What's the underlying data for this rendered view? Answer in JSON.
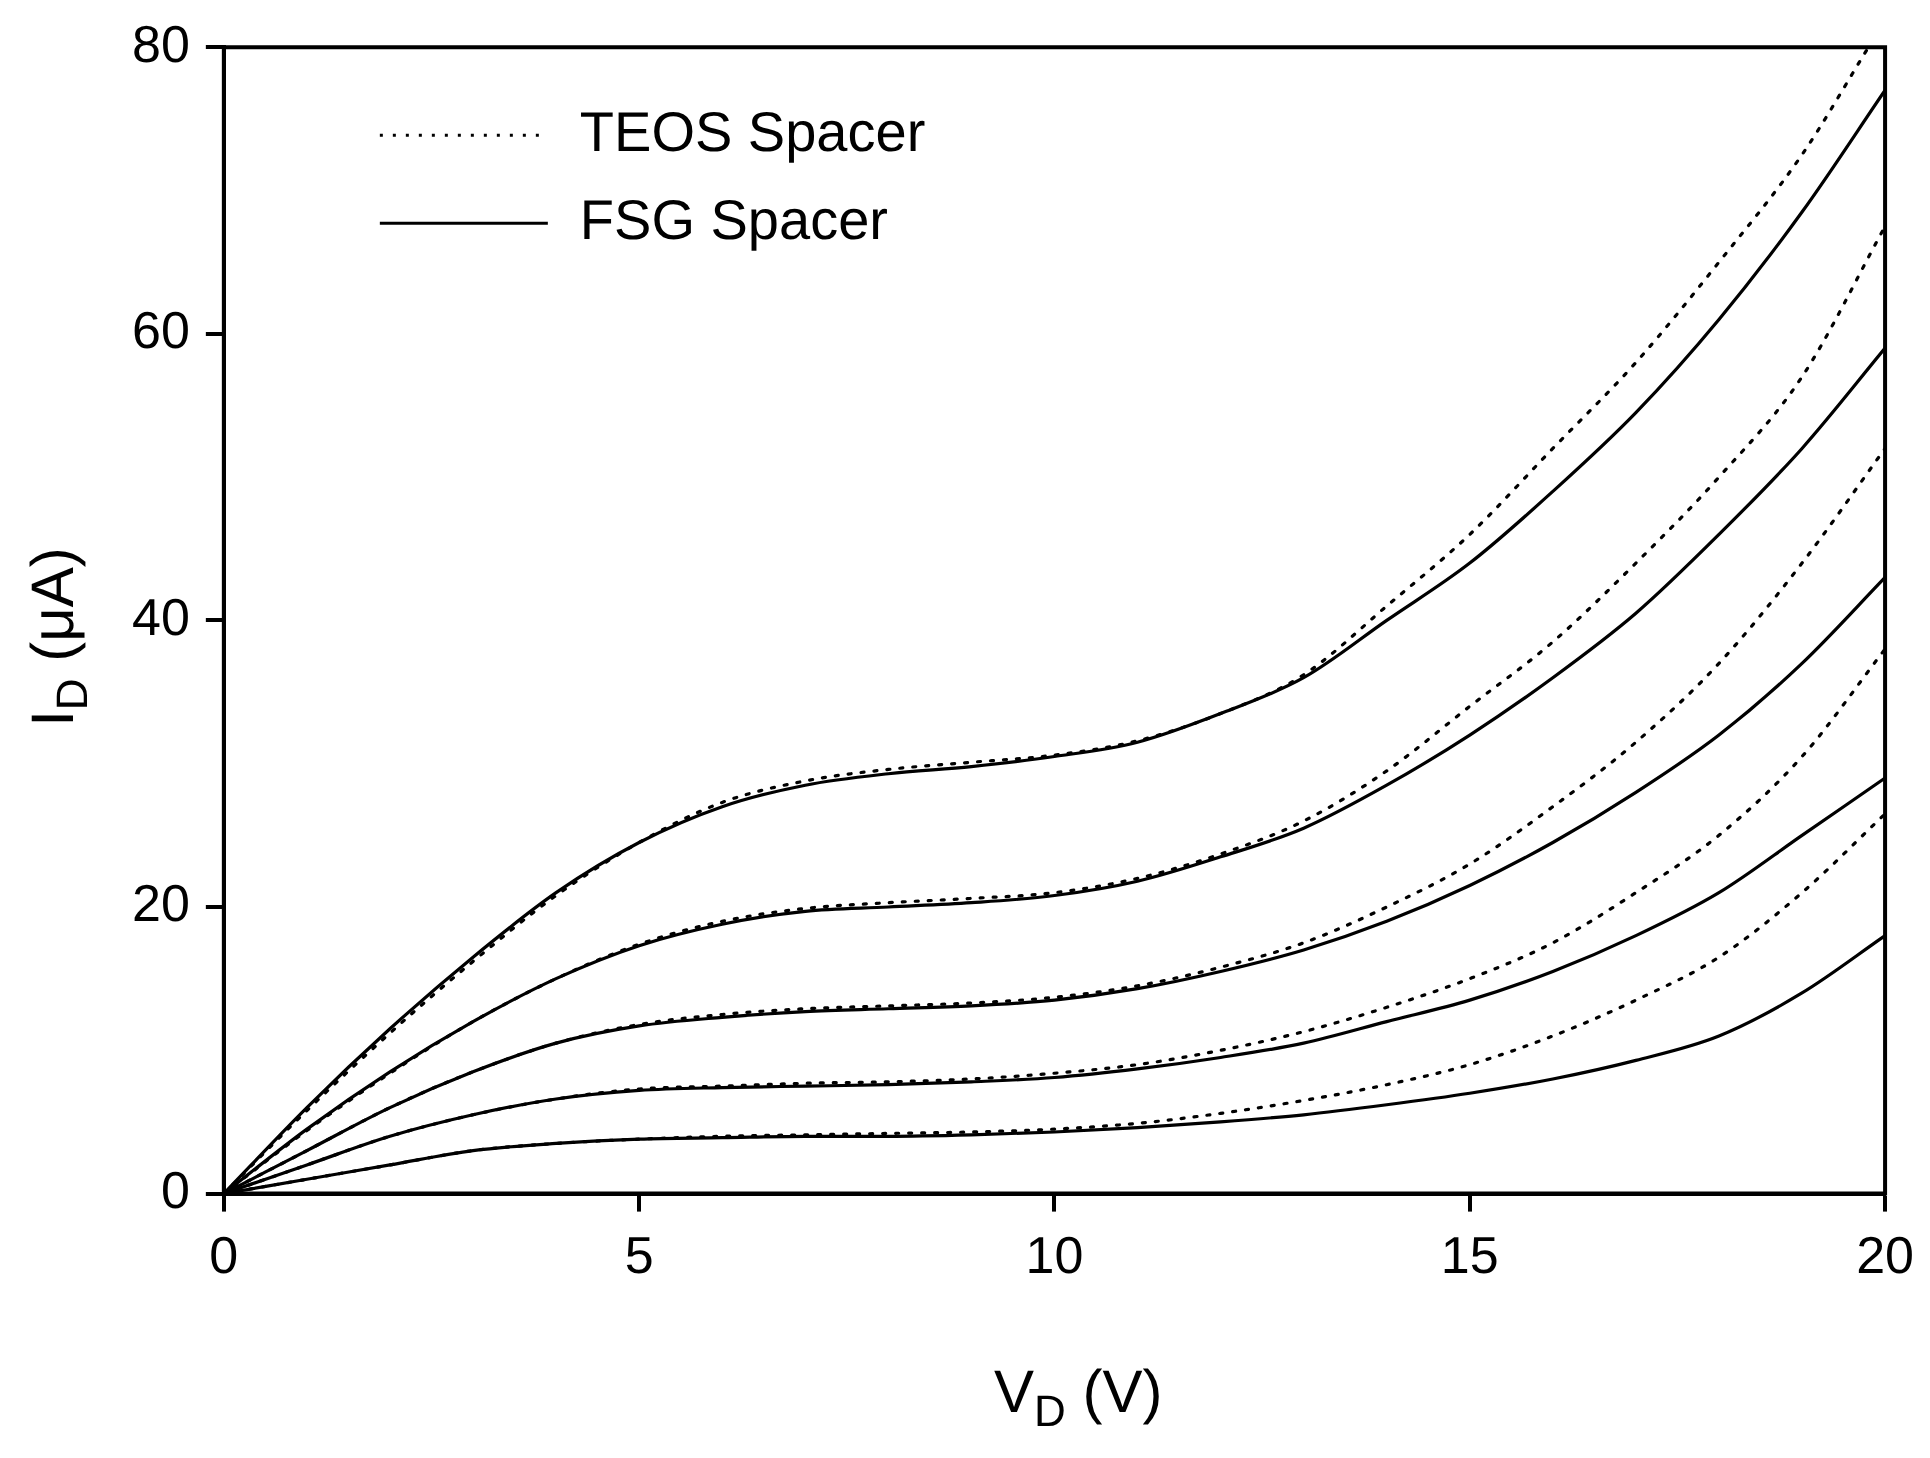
{
  "chart_data": {
    "type": "line",
    "xlabel": "V$_{D}$ (V)",
    "ylabel": "I$_{D}$ (μA)",
    "x": [
      0,
      1,
      2,
      3,
      4,
      5,
      6,
      7,
      8,
      9,
      10,
      11,
      12,
      13,
      14,
      15,
      16,
      17,
      18,
      19,
      20
    ],
    "xlim": [
      0,
      20
    ],
    "xticks": [
      0,
      5,
      10,
      15,
      20
    ],
    "ylim": [
      0,
      80
    ],
    "yticks": [
      0,
      20,
      40,
      60,
      80
    ],
    "grid": false,
    "legend": "top left",
    "marker": "none",
    "series": [
      {
        "name": "TEOS Spacer",
        "color": "#000000",
        "line_style": "dotted",
        "x": [
          0,
          1,
          2,
          3,
          4,
          5,
          6,
          7,
          8,
          9,
          10,
          11,
          12,
          13,
          14,
          15,
          16,
          17,
          18,
          19,
          19.8
        ],
        "values": [
          0,
          5.8,
          11.2,
          16.2,
          20.8,
          24.5,
          27.3,
          28.8,
          29.6,
          30.1,
          30.6,
          31.6,
          33.5,
          36.2,
          41,
          46,
          52,
          58,
          65,
          72.5,
          80
        ]
      },
      {
        "name": "FSG Spacer",
        "color": "#000000",
        "line_style": "solid",
        "values": [
          0,
          6,
          11.5,
          16.5,
          21,
          24.5,
          27,
          28.5,
          29.3,
          29.8,
          30.5,
          31.5,
          33.5,
          36,
          40,
          44,
          49,
          54.5,
          61,
          68.5,
          77
        ]
      },
      {
        "color": "#000000",
        "line_style": "dotted",
        "values": [
          0,
          4.4,
          8.4,
          12,
          15,
          17.4,
          19,
          19.9,
          20.3,
          20.6,
          21,
          22,
          23.7,
          26,
          29.5,
          34,
          38.5,
          44,
          50,
          57,
          67.5
        ]
      },
      {
        "color": "#000000",
        "line_style": "solid",
        "values": [
          0,
          4.5,
          8.5,
          12,
          15,
          17.3,
          18.8,
          19.7,
          20,
          20.3,
          20.8,
          21.8,
          23.5,
          25.5,
          28.5,
          32,
          36,
          40.5,
          46,
          52,
          59
        ]
      },
      {
        "color": "#000000",
        "line_style": "dotted",
        "values": [
          0,
          3,
          6,
          8.5,
          10.5,
          11.8,
          12.5,
          12.9,
          13.1,
          13.3,
          13.7,
          14.5,
          15.8,
          17.5,
          20,
          23,
          27,
          31.5,
          37,
          44,
          52
        ]
      },
      {
        "color": "#000000",
        "line_style": "solid",
        "values": [
          0,
          3,
          6,
          8.5,
          10.5,
          11.7,
          12.3,
          12.7,
          12.9,
          13.1,
          13.5,
          14.3,
          15.5,
          17,
          19,
          21.5,
          24.5,
          28,
          32,
          37,
          43
        ]
      },
      {
        "color": "#000000",
        "line_style": "dotted",
        "values": [
          0,
          2,
          4,
          5.5,
          6.6,
          7.3,
          7.5,
          7.7,
          7.8,
          8,
          8.4,
          9,
          10,
          11.3,
          13,
          15,
          17.5,
          21,
          25,
          30.5,
          38
        ]
      },
      {
        "color": "#000000",
        "line_style": "solid",
        "values": [
          0,
          2,
          4,
          5.5,
          6.6,
          7.2,
          7.4,
          7.5,
          7.6,
          7.8,
          8.1,
          8.7,
          9.5,
          10.5,
          12,
          13.5,
          15.5,
          18,
          21,
          25,
          29
        ]
      },
      {
        "color": "#000000",
        "line_style": "dotted",
        "values": [
          0,
          1,
          2,
          3,
          3.5,
          3.8,
          4,
          4.1,
          4.2,
          4.3,
          4.5,
          4.9,
          5.6,
          6.5,
          7.6,
          9,
          11,
          13.5,
          16.5,
          21,
          26.5
        ]
      },
      {
        "color": "#000000",
        "line_style": "solid",
        "values": [
          0,
          1,
          2,
          3,
          3.5,
          3.8,
          3.9,
          4,
          4,
          4.1,
          4.3,
          4.6,
          5,
          5.5,
          6.2,
          7,
          8,
          9.3,
          11,
          14,
          18
        ]
      }
    ]
  }
}
